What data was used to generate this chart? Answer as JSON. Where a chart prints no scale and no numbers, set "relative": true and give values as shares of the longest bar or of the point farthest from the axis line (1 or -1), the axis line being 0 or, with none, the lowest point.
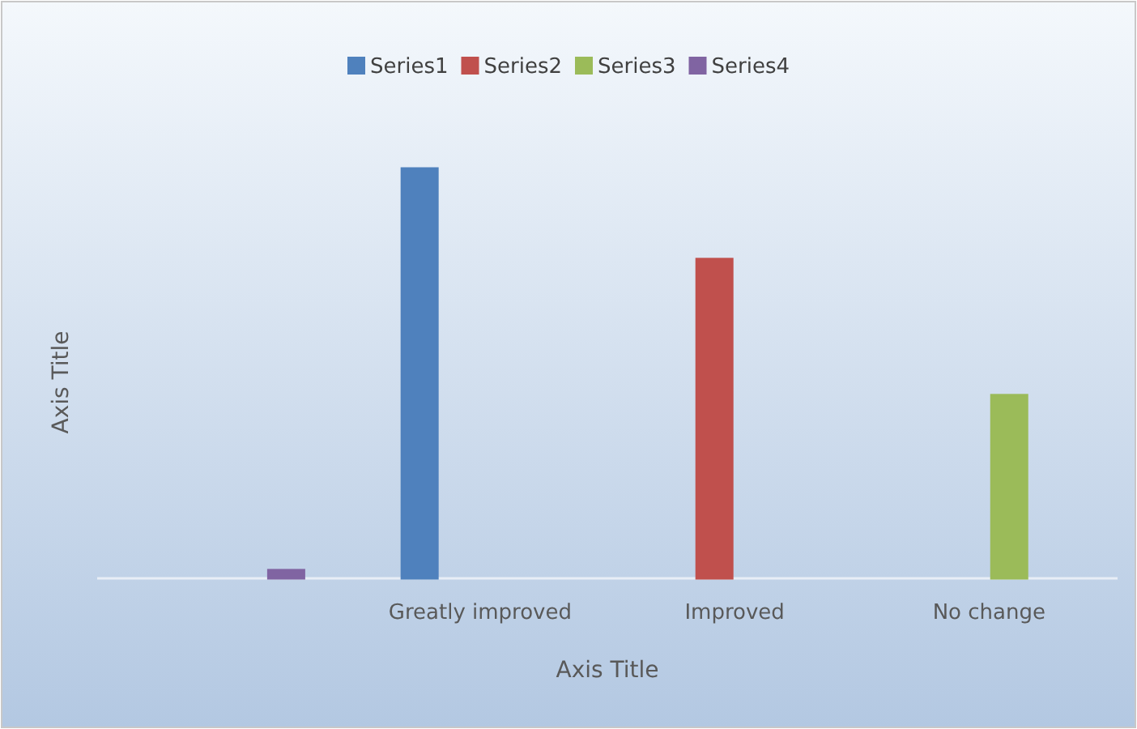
{
  "chart_data": {
    "type": "bar",
    "relative": true,
    "xlabel": "Axis Title",
    "ylabel": "Axis Title",
    "legend": "top",
    "categories": [
      null,
      "Greatly improved",
      "Improved",
      "No change"
    ],
    "series": [
      {
        "name": "Series1",
        "color": "#4f81bd",
        "values": [
          null,
          1,
          null,
          null
        ]
      },
      {
        "name": "Series2",
        "color": "#c0504d",
        "values": [
          null,
          null,
          0.779,
          null
        ]
      },
      {
        "name": "Series3",
        "color": "#9bbb59",
        "values": [
          null,
          null,
          null,
          0.447
        ]
      },
      {
        "name": "Series4",
        "color": "#8064a2",
        "values": [
          0.02,
          null,
          null,
          null
        ]
      }
    ]
  }
}
